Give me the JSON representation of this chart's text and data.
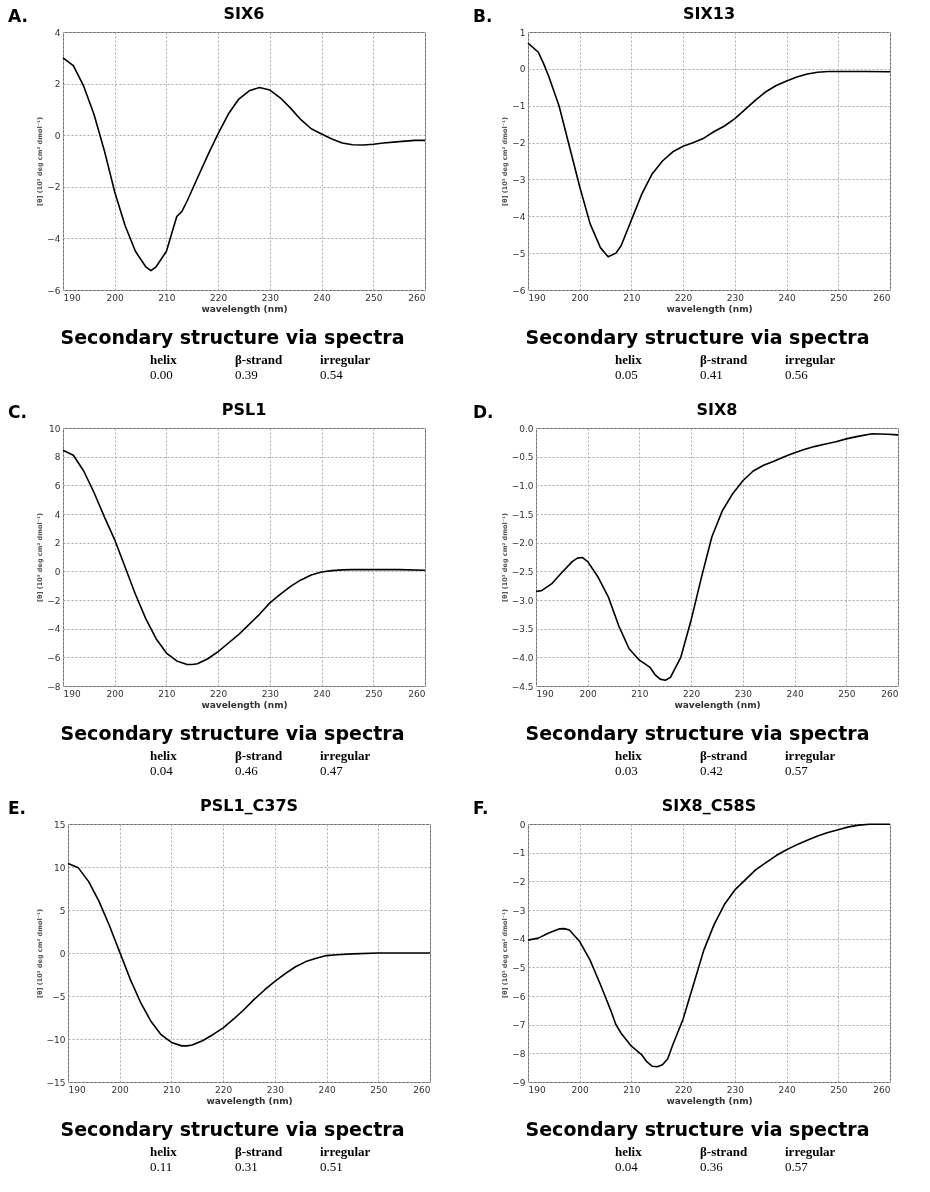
{
  "chart_data": [
    {
      "type": "line",
      "title": "SIX6",
      "xlabel": "wavelength (nm)",
      "ylabel": "[θ] (10³ deg cm² dmol⁻¹)",
      "xlim": [
        190,
        260
      ],
      "xticks": [
        190,
        200,
        210,
        220,
        230,
        240,
        250,
        260
      ],
      "ylim": [
        -6,
        4
      ],
      "yticks": [
        -6,
        -4,
        -2,
        0,
        2,
        4
      ],
      "grid": true,
      "annotations": [
        "A.",
        "Secondary structure via spectra",
        "helix",
        "β-strand",
        "irregular",
        "0.00",
        "0.39",
        "0.54"
      ],
      "x": [
        190,
        192,
        194,
        196,
        198,
        200,
        202,
        204,
        206,
        207,
        208,
        210,
        212,
        213,
        214,
        216,
        218,
        220,
        222,
        224,
        226,
        228,
        230,
        232,
        234,
        236,
        238,
        240,
        242,
        244,
        246,
        248,
        250,
        252,
        255,
        258,
        260
      ],
      "series": [
        {
          "color": "#000000",
          "values": [
            3.0,
            2.7,
            1.9,
            0.8,
            -0.6,
            -2.2,
            -3.5,
            -4.5,
            -5.1,
            -5.25,
            -5.1,
            -4.5,
            -3.15,
            -2.95,
            -2.55,
            -1.66,
            -0.77,
            0.06,
            0.83,
            1.4,
            1.72,
            1.85,
            1.75,
            1.45,
            1.05,
            0.6,
            0.25,
            0.05,
            -0.15,
            -0.3,
            -0.37,
            -0.38,
            -0.35,
            -0.3,
            -0.25,
            -0.2,
            -0.2
          ]
        }
      ]
    },
    {
      "type": "line",
      "title": "SIX13",
      "xlabel": "wavelength (nm)",
      "ylabel": "[θ] (10³ deg cm² dmol⁻¹)",
      "xlim": [
        190,
        260
      ],
      "xticks": [
        190,
        200,
        210,
        220,
        230,
        240,
        250,
        260
      ],
      "ylim": [
        -6,
        1
      ],
      "yticks": [
        -6,
        -5,
        -4,
        -3,
        -2,
        -1,
        0,
        1
      ],
      "grid": true,
      "annotations": [
        "B.",
        "Secondary structure via spectra",
        "helix",
        "β-strand",
        "irregular",
        "0.05",
        "0.41",
        "0.56"
      ],
      "x": [
        190,
        192,
        193,
        194,
        196,
        198,
        200,
        202,
        204,
        205.5,
        207,
        208,
        210,
        212,
        214,
        216,
        218,
        220,
        222,
        224,
        226,
        228,
        230,
        232,
        234,
        236,
        238,
        240,
        242,
        244,
        246,
        248,
        250,
        255,
        260
      ],
      "series": [
        {
          "color": "#000000",
          "values": [
            0.7,
            0.45,
            0.15,
            -0.2,
            -1.0,
            -2.1,
            -3.2,
            -4.2,
            -4.85,
            -5.1,
            -5.0,
            -4.8,
            -4.1,
            -3.4,
            -2.85,
            -2.5,
            -2.25,
            -2.1,
            -2.0,
            -1.88,
            -1.7,
            -1.55,
            -1.35,
            -1.1,
            -0.85,
            -0.62,
            -0.45,
            -0.33,
            -0.22,
            -0.14,
            -0.09,
            -0.07,
            -0.07,
            -0.07,
            -0.08
          ]
        }
      ]
    },
    {
      "type": "line",
      "title": "PSL1",
      "xlabel": "wavelength (nm)",
      "ylabel": "[θ] (10³ deg cm² dmol⁻¹)",
      "xlim": [
        190,
        260
      ],
      "xticks": [
        190,
        200,
        210,
        220,
        230,
        240,
        250,
        260
      ],
      "ylim": [
        -8,
        10
      ],
      "yticks": [
        -8,
        -6,
        -4,
        -2,
        0,
        2,
        4,
        6,
        8,
        10
      ],
      "grid": true,
      "annotations": [
        "C.",
        "Secondary structure via spectra",
        "helix",
        "β-strand",
        "irregular",
        "0.04",
        "0.46",
        "0.47"
      ],
      "x": [
        190,
        192,
        194,
        196,
        198,
        200,
        202,
        204,
        206,
        208,
        210,
        212,
        214,
        215,
        216,
        218,
        220,
        222,
        224,
        226,
        228,
        230,
        232,
        234,
        236,
        238,
        240,
        242,
        244,
        246,
        250,
        255,
        260
      ],
      "series": [
        {
          "color": "#000000",
          "values": [
            8.45,
            8.1,
            7.0,
            5.5,
            3.8,
            2.2,
            0.3,
            -1.6,
            -3.3,
            -4.7,
            -5.7,
            -6.25,
            -6.5,
            -6.5,
            -6.45,
            -6.1,
            -5.6,
            -5.0,
            -4.4,
            -3.7,
            -3.0,
            -2.2,
            -1.6,
            -1.05,
            -0.6,
            -0.25,
            -0.05,
            0.05,
            0.1,
            0.12,
            0.12,
            0.12,
            0.08
          ]
        }
      ]
    },
    {
      "type": "line",
      "title": "SIX8",
      "xlabel": "wavelength (nm)",
      "ylabel": "[θ] (10³ deg cm² dmol⁻¹)",
      "xlim": [
        190,
        260
      ],
      "xticks": [
        190,
        200,
        210,
        220,
        230,
        240,
        250,
        260
      ],
      "ylim": [
        -4.5,
        0
      ],
      "yticks": [
        {
          "value": -4.5,
          "label": "−4.5"
        },
        {
          "value": -4,
          "label": "−4.0"
        },
        {
          "value": -3.5,
          "label": "−3.5"
        },
        {
          "value": -3,
          "label": "−3.0"
        },
        {
          "value": -2.5,
          "label": "−2.5"
        },
        {
          "value": -2,
          "label": "−2.0"
        },
        {
          "value": -1.5,
          "label": "−1.5"
        },
        {
          "value": -1,
          "label": "−1.0"
        },
        {
          "value": -0.5,
          "label": "−0.5"
        },
        {
          "value": 0,
          "label": "0.0"
        }
      ],
      "grid": true,
      "annotations": [
        "D.",
        "Secondary structure via spectra",
        "helix",
        "β-strand",
        "irregular",
        "0.03",
        "0.42",
        "0.57"
      ],
      "x": [
        190,
        191,
        193,
        195,
        197,
        198,
        199,
        200,
        202,
        204,
        206,
        208,
        210,
        212,
        213,
        214,
        215,
        216,
        218,
        220,
        222,
        224,
        226,
        228,
        230,
        232,
        234,
        236,
        238,
        240,
        242,
        244,
        246,
        248,
        250,
        252,
        255,
        258,
        260
      ],
      "series": [
        {
          "color": "#000000",
          "values": [
            -2.85,
            -2.84,
            -2.72,
            -2.52,
            -2.33,
            -2.27,
            -2.26,
            -2.33,
            -2.6,
            -2.95,
            -3.45,
            -3.85,
            -4.05,
            -4.17,
            -4.3,
            -4.38,
            -4.4,
            -4.35,
            -4.0,
            -3.35,
            -2.6,
            -1.9,
            -1.45,
            -1.15,
            -0.92,
            -0.75,
            -0.65,
            -0.58,
            -0.5,
            -0.43,
            -0.37,
            -0.32,
            -0.28,
            -0.24,
            -0.19,
            -0.15,
            -0.1,
            -0.11,
            -0.12
          ]
        }
      ]
    },
    {
      "type": "line",
      "title": "PSL1_C37S",
      "xlabel": "wavelength (nm)",
      "ylabel": "[θ] (10³ deg cm² dmol⁻¹)",
      "xlim": [
        190,
        260
      ],
      "xticks": [
        190,
        200,
        210,
        220,
        230,
        240,
        250,
        260
      ],
      "ylim": [
        -15,
        15
      ],
      "yticks": [
        -15,
        -10,
        -5,
        0,
        5,
        10,
        15
      ],
      "grid": true,
      "annotations": [
        "E.",
        "Secondary structure via spectra",
        "helix",
        "β-strand",
        "irregular",
        "0.11",
        "0.31",
        "0.51"
      ],
      "x": [
        190,
        192,
        194,
        196,
        198,
        200,
        202,
        204,
        206,
        208,
        210,
        212,
        213,
        214,
        216,
        218,
        220,
        222,
        224,
        226,
        228,
        230,
        232,
        234,
        236,
        238,
        240,
        242,
        245,
        250,
        260
      ],
      "series": [
        {
          "color": "#000000",
          "values": [
            10.4,
            9.9,
            8.3,
            6.0,
            3.2,
            0.1,
            -3.0,
            -5.7,
            -7.9,
            -9.5,
            -10.4,
            -10.8,
            -10.8,
            -10.7,
            -10.2,
            -9.5,
            -8.7,
            -7.7,
            -6.6,
            -5.4,
            -4.3,
            -3.3,
            -2.4,
            -1.6,
            -1.0,
            -0.6,
            -0.3,
            -0.2,
            -0.1,
            0.0,
            0.0
          ]
        }
      ]
    },
    {
      "type": "line",
      "title": "SIX8_C58S",
      "xlabel": "wavelength (nm)",
      "ylabel": "[θ] (10³ deg cm² dmol⁻¹)",
      "xlim": [
        190,
        260
      ],
      "xticks": [
        190,
        200,
        210,
        220,
        230,
        240,
        250,
        260
      ],
      "ylim": [
        -9,
        0
      ],
      "yticks": [
        -9,
        -8,
        -7,
        -6,
        -5,
        -4,
        -3,
        -2,
        -1,
        0
      ],
      "grid": true,
      "annotations": [
        "F.",
        "Secondary structure via spectra",
        "helix",
        "β-strand",
        "irregular",
        "0.04",
        "0.36",
        "0.57"
      ],
      "x": [
        190,
        192,
        194,
        196,
        197,
        198,
        200,
        202,
        204,
        206,
        207,
        208,
        210,
        212,
        213,
        214,
        215,
        216,
        217,
        218,
        220,
        222,
        224,
        226,
        228,
        230,
        232,
        234,
        236,
        238,
        240,
        242,
        244,
        246,
        248,
        250,
        252,
        254,
        256,
        258,
        260
      ],
      "series": [
        {
          "color": "#000000",
          "values": [
            -4.05,
            -3.98,
            -3.8,
            -3.66,
            -3.65,
            -3.7,
            -4.1,
            -4.75,
            -5.6,
            -6.5,
            -7.0,
            -7.3,
            -7.75,
            -8.05,
            -8.3,
            -8.45,
            -8.47,
            -8.4,
            -8.2,
            -7.7,
            -6.8,
            -5.6,
            -4.4,
            -3.5,
            -2.8,
            -2.3,
            -1.95,
            -1.6,
            -1.35,
            -1.1,
            -0.9,
            -0.72,
            -0.57,
            -0.42,
            -0.3,
            -0.2,
            -0.1,
            -0.04,
            -0.01,
            -0.01,
            -0.01
          ]
        }
      ]
    }
  ]
}
